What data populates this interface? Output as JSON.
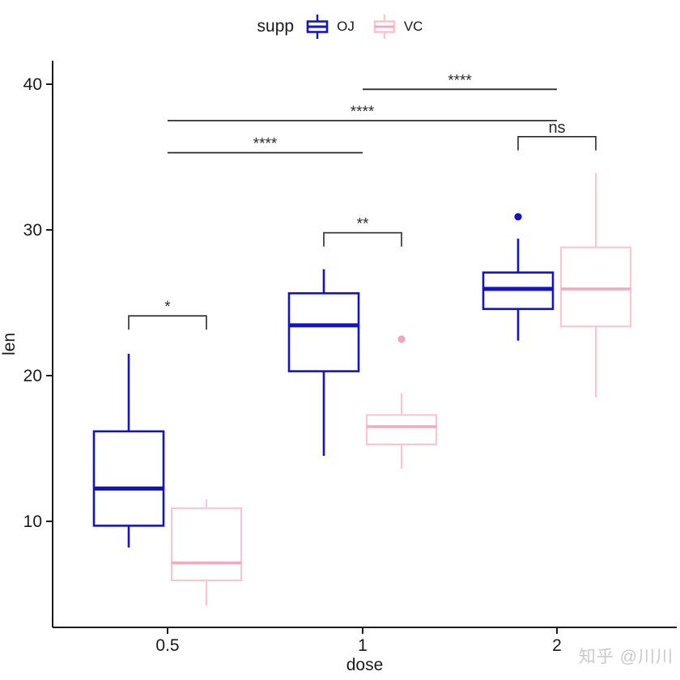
{
  "watermark": "知乎 @川川",
  "chart_data": {
    "type": "boxplot",
    "title": "",
    "xlabel": "dose",
    "ylabel": "len",
    "categories": [
      "0.5",
      "1",
      "2"
    ],
    "y_ticks": [
      10,
      20,
      30,
      40
    ],
    "ylim": [
      2.7,
      41.6
    ],
    "grid": false,
    "legend": {
      "title": "supp",
      "position": "top"
    },
    "axis_color": "#1a1a1a",
    "annotation_color": "#2b2b2b",
    "series": [
      {
        "name": "OJ",
        "color": "#1513c6",
        "median_color": "#1513c6",
        "outlier_color": "#1513c6",
        "boxes": [
          {
            "category": "0.5",
            "whisker_low": 8.2,
            "q1": 9.7,
            "median": 12.25,
            "q3": 16.175,
            "whisker_high": 21.5,
            "outliers": []
          },
          {
            "category": "1",
            "whisker_low": 14.5,
            "q1": 20.3,
            "median": 23.45,
            "q3": 25.65,
            "whisker_high": 27.3,
            "outliers": []
          },
          {
            "category": "2",
            "whisker_low": 22.4,
            "q1": 24.575,
            "median": 25.95,
            "q3": 27.075,
            "whisker_high": 29.4,
            "outliers": [
              30.9
            ]
          }
        ]
      },
      {
        "name": "VC",
        "color": "#fbc4d0",
        "median_color": "#f5a9be",
        "outlier_color": "#f2a4ba",
        "boxes": [
          {
            "category": "0.5",
            "whisker_low": 4.2,
            "q1": 5.95,
            "median": 7.15,
            "q3": 10.9,
            "whisker_high": 11.5,
            "outliers": []
          },
          {
            "category": "1",
            "whisker_low": 13.6,
            "q1": 15.275,
            "median": 16.5,
            "q3": 17.3,
            "whisker_high": 18.8,
            "outliers": [
              22.5
            ]
          },
          {
            "category": "2",
            "whisker_low": 18.5,
            "q1": 23.375,
            "median": 25.95,
            "q3": 28.8,
            "whisker_high": 33.9,
            "outliers": []
          }
        ]
      }
    ],
    "annotations": [
      {
        "label": "*",
        "style": "bracket",
        "category_index": 0,
        "y": 24.1
      },
      {
        "label": "**",
        "style": "bracket",
        "category_index": 1,
        "y": 29.8
      },
      {
        "label": "ns",
        "style": "bracket",
        "category_index": 2,
        "y": 36.4
      },
      {
        "label": "****",
        "style": "line",
        "from_category": 0,
        "to_category": 1,
        "y": 35.3
      },
      {
        "label": "****",
        "style": "line",
        "from_category": 0,
        "to_category": 2,
        "y": 37.5
      },
      {
        "label": "****",
        "style": "line",
        "from_category": 1,
        "to_category": 2,
        "y": 39.65
      }
    ]
  }
}
